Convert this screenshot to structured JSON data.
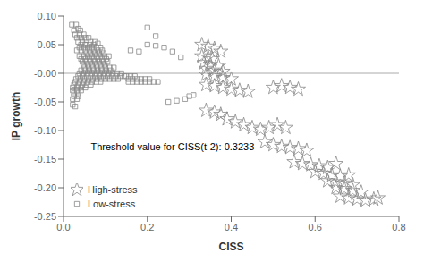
{
  "chart_data": {
    "type": "scatter",
    "xlabel": "CISS",
    "ylabel": "IP growth",
    "xlim": [
      0.0,
      0.8
    ],
    "ylim": [
      -0.25,
      0.1
    ],
    "xticks": [
      {
        "value": 0.0,
        "label": "0.0"
      },
      0.2,
      0.4,
      0.6,
      0.8
    ],
    "yticks": [
      -0.25,
      {
        "value": -0.2,
        "label": "-0.20"
      },
      -0.15,
      {
        "value": -0.1,
        "label": "-0.10"
      },
      -0.05,
      {
        "value": 0.0,
        "label": "-0.00"
      },
      0.05,
      {
        "value": 0.1,
        "label": "0.10"
      }
    ],
    "grid": false,
    "legend": "lower left",
    "hline": 0,
    "annotations": [
      {
        "text": "Threshold value for CISS(t-2): 0.3233",
        "x": 0.065,
        "y": -0.135
      }
    ],
    "series": [
      {
        "name": "Low-stress",
        "color": "#888888",
        "marker": "square",
        "values": [
          [
            0.02,
            0.085
          ],
          [
            0.03,
            0.085
          ],
          [
            0.025,
            0.075
          ],
          [
            0.035,
            0.078
          ],
          [
            0.04,
            0.075
          ],
          [
            0.028,
            0.068
          ],
          [
            0.038,
            0.068
          ],
          [
            0.048,
            0.068
          ],
          [
            0.032,
            0.062
          ],
          [
            0.042,
            0.062
          ],
          [
            0.052,
            0.062
          ],
          [
            0.06,
            0.062
          ],
          [
            0.035,
            0.055
          ],
          [
            0.045,
            0.055
          ],
          [
            0.055,
            0.058
          ],
          [
            0.065,
            0.055
          ],
          [
            0.075,
            0.055
          ],
          [
            0.042,
            0.05
          ],
          [
            0.052,
            0.05
          ],
          [
            0.062,
            0.05
          ],
          [
            0.072,
            0.05
          ],
          [
            0.082,
            0.052
          ],
          [
            0.038,
            0.045
          ],
          [
            0.048,
            0.045
          ],
          [
            0.058,
            0.045
          ],
          [
            0.068,
            0.045
          ],
          [
            0.078,
            0.045
          ],
          [
            0.088,
            0.045
          ],
          [
            0.032,
            0.04
          ],
          [
            0.042,
            0.04
          ],
          [
            0.052,
            0.04
          ],
          [
            0.062,
            0.04
          ],
          [
            0.072,
            0.04
          ],
          [
            0.082,
            0.04
          ],
          [
            0.092,
            0.04
          ],
          [
            0.055,
            0.035
          ],
          [
            0.065,
            0.035
          ],
          [
            0.075,
            0.035
          ],
          [
            0.085,
            0.035
          ],
          [
            0.095,
            0.035
          ],
          [
            0.038,
            0.03
          ],
          [
            0.048,
            0.03
          ],
          [
            0.058,
            0.03
          ],
          [
            0.068,
            0.03
          ],
          [
            0.078,
            0.03
          ],
          [
            0.088,
            0.03
          ],
          [
            0.098,
            0.03
          ],
          [
            0.108,
            0.03
          ],
          [
            0.042,
            0.025
          ],
          [
            0.052,
            0.025
          ],
          [
            0.062,
            0.025
          ],
          [
            0.072,
            0.025
          ],
          [
            0.082,
            0.025
          ],
          [
            0.092,
            0.025
          ],
          [
            0.102,
            0.025
          ],
          [
            0.045,
            0.02
          ],
          [
            0.055,
            0.02
          ],
          [
            0.065,
            0.02
          ],
          [
            0.075,
            0.02
          ],
          [
            0.085,
            0.02
          ],
          [
            0.095,
            0.02
          ],
          [
            0.105,
            0.02
          ],
          [
            0.048,
            0.015
          ],
          [
            0.058,
            0.015
          ],
          [
            0.068,
            0.015
          ],
          [
            0.078,
            0.015
          ],
          [
            0.088,
            0.015
          ],
          [
            0.098,
            0.015
          ],
          [
            0.05,
            0.01
          ],
          [
            0.06,
            0.01
          ],
          [
            0.07,
            0.01
          ],
          [
            0.08,
            0.01
          ],
          [
            0.09,
            0.01
          ],
          [
            0.1,
            0.01
          ],
          [
            0.11,
            0.01
          ],
          [
            0.12,
            0.01
          ],
          [
            0.042,
            0.005
          ],
          [
            0.052,
            0.005
          ],
          [
            0.062,
            0.005
          ],
          [
            0.072,
            0.005
          ],
          [
            0.082,
            0.005
          ],
          [
            0.092,
            0.005
          ],
          [
            0.102,
            0.005
          ],
          [
            0.112,
            0.005
          ],
          [
            0.038,
            0.0
          ],
          [
            0.048,
            0.0
          ],
          [
            0.058,
            0.0
          ],
          [
            0.068,
            0.0
          ],
          [
            0.078,
            0.0
          ],
          [
            0.088,
            0.0
          ],
          [
            0.098,
            0.0
          ],
          [
            0.108,
            0.0
          ],
          [
            0.118,
            0.0
          ],
          [
            0.128,
            0.0
          ],
          [
            0.138,
            0.0
          ],
          [
            0.035,
            -0.005
          ],
          [
            0.045,
            -0.005
          ],
          [
            0.055,
            -0.005
          ],
          [
            0.065,
            -0.005
          ],
          [
            0.075,
            -0.005
          ],
          [
            0.085,
            -0.005
          ],
          [
            0.095,
            -0.005
          ],
          [
            0.105,
            -0.005
          ],
          [
            0.115,
            -0.005
          ],
          [
            0.125,
            -0.005
          ],
          [
            0.135,
            -0.005
          ],
          [
            0.145,
            -0.005
          ],
          [
            0.03,
            -0.01
          ],
          [
            0.04,
            -0.01
          ],
          [
            0.05,
            -0.01
          ],
          [
            0.06,
            -0.01
          ],
          [
            0.07,
            -0.01
          ],
          [
            0.08,
            -0.01
          ],
          [
            0.09,
            -0.01
          ],
          [
            0.1,
            -0.01
          ],
          [
            0.11,
            -0.01
          ],
          [
            0.12,
            -0.01
          ],
          [
            0.13,
            -0.01
          ],
          [
            0.028,
            -0.015
          ],
          [
            0.038,
            -0.015
          ],
          [
            0.048,
            -0.015
          ],
          [
            0.058,
            -0.015
          ],
          [
            0.068,
            -0.015
          ],
          [
            0.078,
            -0.015
          ],
          [
            0.088,
            -0.015
          ],
          [
            0.025,
            -0.02
          ],
          [
            0.035,
            -0.02
          ],
          [
            0.045,
            -0.02
          ],
          [
            0.055,
            -0.02
          ],
          [
            0.065,
            -0.02
          ],
          [
            0.022,
            -0.025
          ],
          [
            0.032,
            -0.025
          ],
          [
            0.042,
            -0.025
          ],
          [
            0.052,
            -0.025
          ],
          [
            0.022,
            -0.03
          ],
          [
            0.032,
            -0.03
          ],
          [
            0.042,
            -0.03
          ],
          [
            0.025,
            -0.035
          ],
          [
            0.035,
            -0.035
          ],
          [
            0.025,
            -0.04
          ],
          [
            0.035,
            -0.04
          ],
          [
            0.022,
            -0.045
          ],
          [
            0.032,
            -0.045
          ],
          [
            0.022,
            -0.055
          ],
          [
            0.028,
            -0.058
          ],
          [
            0.15,
            -0.005
          ],
          [
            0.16,
            -0.005
          ],
          [
            0.17,
            -0.005
          ],
          [
            0.155,
            -0.01
          ],
          [
            0.165,
            -0.01
          ],
          [
            0.175,
            -0.01
          ],
          [
            0.185,
            -0.01
          ],
          [
            0.195,
            -0.01
          ],
          [
            0.205,
            -0.01
          ],
          [
            0.155,
            -0.015
          ],
          [
            0.165,
            -0.015
          ],
          [
            0.175,
            -0.015
          ],
          [
            0.185,
            -0.015
          ],
          [
            0.195,
            -0.015
          ],
          [
            0.205,
            -0.015
          ],
          [
            0.215,
            -0.015
          ],
          [
            0.225,
            -0.015
          ],
          [
            0.2,
            0.08
          ],
          [
            0.22,
            0.065
          ],
          [
            0.16,
            0.04
          ],
          [
            0.18,
            0.038
          ],
          [
            0.2,
            0.05
          ],
          [
            0.22,
            0.048
          ],
          [
            0.24,
            0.045
          ],
          [
            0.26,
            0.038
          ],
          [
            0.28,
            0.028
          ],
          [
            0.25,
            -0.05
          ],
          [
            0.27,
            -0.048
          ],
          [
            0.29,
            -0.045
          ],
          [
            0.3,
            -0.04
          ],
          [
            0.31,
            -0.038
          ]
        ]
      },
      {
        "name": "High-stress",
        "color": "#888888",
        "marker": "star",
        "values": [
          [
            0.33,
            0.05
          ],
          [
            0.345,
            0.047
          ],
          [
            0.36,
            0.043
          ],
          [
            0.375,
            0.038
          ],
          [
            0.33,
            0.03
          ],
          [
            0.345,
            0.028
          ],
          [
            0.355,
            0.025
          ],
          [
            0.335,
            0.018
          ],
          [
            0.35,
            0.015
          ],
          [
            0.37,
            0.013
          ],
          [
            0.34,
            0.008
          ],
          [
            0.36,
            0.005
          ],
          [
            0.38,
            0.003
          ],
          [
            0.34,
            -0.002
          ],
          [
            0.36,
            -0.005
          ],
          [
            0.38,
            -0.008
          ],
          [
            0.4,
            -0.01
          ],
          [
            0.34,
            -0.02
          ],
          [
            0.36,
            -0.022
          ],
          [
            0.38,
            -0.025
          ],
          [
            0.4,
            -0.028
          ],
          [
            0.42,
            -0.03
          ],
          [
            0.44,
            -0.032
          ],
          [
            0.34,
            -0.065
          ],
          [
            0.36,
            -0.068
          ],
          [
            0.375,
            -0.072
          ],
          [
            0.39,
            -0.08
          ],
          [
            0.41,
            -0.085
          ],
          [
            0.43,
            -0.09
          ],
          [
            0.45,
            -0.095
          ],
          [
            0.47,
            -0.098
          ],
          [
            0.49,
            -0.095
          ],
          [
            0.5,
            -0.025
          ],
          [
            0.52,
            -0.022
          ],
          [
            0.54,
            -0.025
          ],
          [
            0.56,
            -0.028
          ],
          [
            0.51,
            -0.09
          ],
          [
            0.53,
            -0.095
          ],
          [
            0.48,
            -0.12
          ],
          [
            0.5,
            -0.125
          ],
          [
            0.52,
            -0.128
          ],
          [
            0.54,
            -0.13
          ],
          [
            0.56,
            -0.132
          ],
          [
            0.58,
            -0.135
          ],
          [
            0.55,
            -0.155
          ],
          [
            0.57,
            -0.158
          ],
          [
            0.59,
            -0.16
          ],
          [
            0.61,
            -0.162
          ],
          [
            0.63,
            -0.165
          ],
          [
            0.65,
            -0.158
          ],
          [
            0.6,
            -0.172
          ],
          [
            0.62,
            -0.175
          ],
          [
            0.64,
            -0.178
          ],
          [
            0.66,
            -0.18
          ],
          [
            0.68,
            -0.178
          ],
          [
            0.63,
            -0.188
          ],
          [
            0.65,
            -0.19
          ],
          [
            0.67,
            -0.192
          ],
          [
            0.69,
            -0.195
          ],
          [
            0.65,
            -0.2
          ],
          [
            0.67,
            -0.202
          ],
          [
            0.69,
            -0.205
          ],
          [
            0.71,
            -0.208
          ],
          [
            0.66,
            -0.215
          ],
          [
            0.68,
            -0.218
          ],
          [
            0.7,
            -0.22
          ],
          [
            0.72,
            -0.222
          ],
          [
            0.74,
            -0.22
          ],
          [
            0.75,
            -0.218
          ]
        ]
      }
    ]
  }
}
